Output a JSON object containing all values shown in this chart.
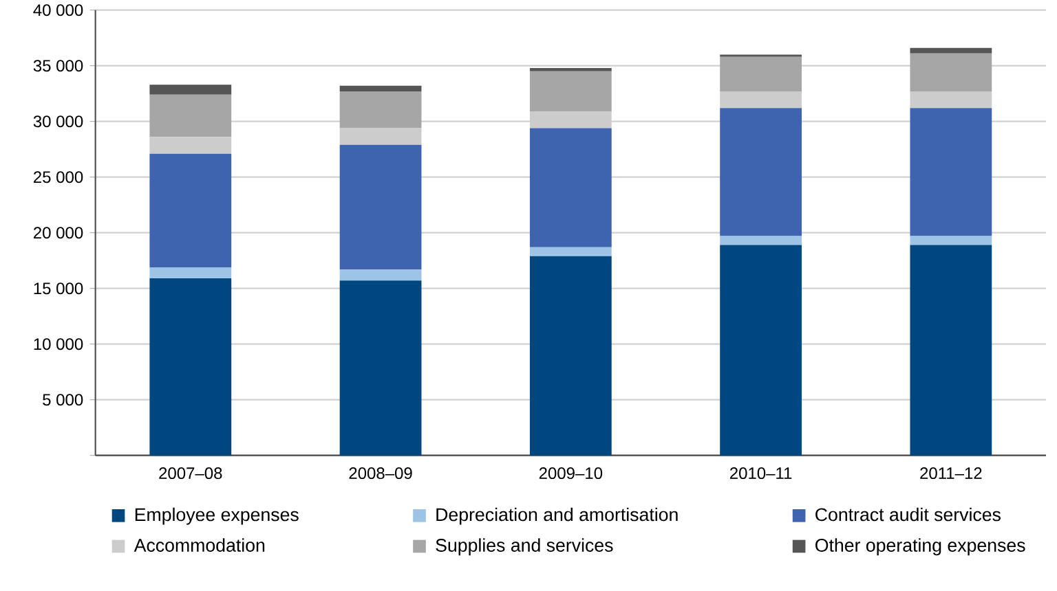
{
  "chart_data": {
    "type": "bar",
    "stacked": true,
    "categories": [
      "2007–08",
      "2008–09",
      "2009–10",
      "2010–11",
      "2011–12"
    ],
    "series": [
      {
        "name": "Employee expenses",
        "color": "#00467f",
        "values": [
          15900,
          15700,
          17900,
          18900,
          18900
        ]
      },
      {
        "name": "Depreciation and amortisation",
        "color": "#9dc3e6",
        "values": [
          1000,
          1000,
          800,
          800,
          800
        ]
      },
      {
        "name": "Contract audit services",
        "color": "#3f64af",
        "values": [
          10200,
          11200,
          10700,
          11500,
          11500
        ]
      },
      {
        "name": "Accommodation",
        "color": "#cccccc",
        "values": [
          1500,
          1500,
          1500,
          1500,
          1500
        ]
      },
      {
        "name": "Supplies and services",
        "color": "#a6a6a6",
        "values": [
          3800,
          3300,
          3600,
          3100,
          3400
        ]
      },
      {
        "name": "Other operating expenses",
        "color": "#555555",
        "values": [
          900,
          500,
          300,
          200,
          500
        ]
      }
    ],
    "ylim": [
      0,
      40000
    ],
    "yticks": [
      {
        "value": 0,
        "label": null
      },
      {
        "value": 5000,
        "label": "5 000"
      },
      {
        "value": 10000,
        "label": "10 000"
      },
      {
        "value": 15000,
        "label": "15 000"
      },
      {
        "value": 20000,
        "label": "20 000"
      },
      {
        "value": 25000,
        "label": "25 000"
      },
      {
        "value": 30000,
        "label": "30 000"
      },
      {
        "value": 35000,
        "label": "35 000"
      },
      {
        "value": 40000,
        "label": "40 000"
      }
    ],
    "grid": "y",
    "legend": "bottom"
  }
}
